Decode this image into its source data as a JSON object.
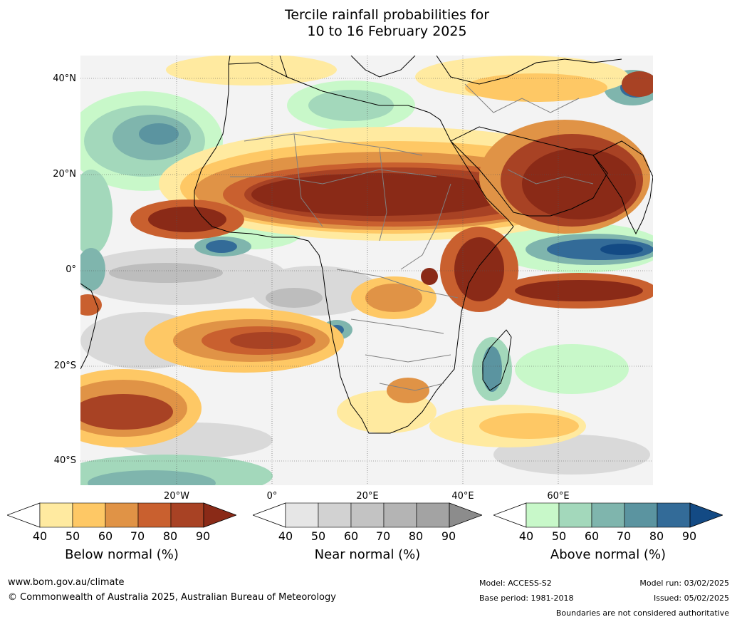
{
  "title": {
    "line1": "Tercile rainfall probabilities for",
    "line2": "10 to 16 February 2025"
  },
  "map": {
    "lat_labels": [
      "40°N",
      "20°N",
      "0°",
      "20°S",
      "40°S"
    ],
    "lon_labels": [
      "20°W",
      "0°",
      "20°E",
      "40°E",
      "60°E"
    ],
    "colors": {
      "ocean_base": "#f2f2f2",
      "land_outline": "#000000",
      "borders": "#808080",
      "grid": "#555555"
    }
  },
  "colorbars": [
    {
      "id": "below",
      "title": "Below normal (%)",
      "ticks": [
        "40",
        "50",
        "60",
        "70",
        "80",
        "90"
      ],
      "colors": [
        "#ffffff",
        "#ffeaa0",
        "#fec865",
        "#e09346",
        "#c9602f",
        "#a84224",
        "#8a2a17"
      ]
    },
    {
      "id": "near",
      "title": "Near normal (%)",
      "ticks": [
        "40",
        "50",
        "60",
        "70",
        "80",
        "90"
      ],
      "colors": [
        "#ffffff",
        "#e6e6e6",
        "#d2d2d2",
        "#c3c3c3",
        "#b4b4b4",
        "#a3a3a3",
        "#8c8c8c"
      ]
    },
    {
      "id": "above",
      "title": "Above normal (%)",
      "ticks": [
        "40",
        "50",
        "60",
        "70",
        "80",
        "90"
      ],
      "colors": [
        "#ffffff",
        "#c8f8c9",
        "#a3d8bb",
        "#7fb5ad",
        "#5b94a0",
        "#336b98",
        "#134a84"
      ]
    }
  ],
  "footer": {
    "url": "www.bom.gov.au/climate",
    "copyright": "© Commonwealth of Australia 2025, Australian Bureau of Meteorology",
    "model": "Model: ACCESS-S2",
    "base_period": "Base period: 1981-2018",
    "model_run": "Model run: 03/02/2025",
    "issued": "Issued: 05/02/2025",
    "disclaimer": "Boundaries are not considered authoritative"
  }
}
